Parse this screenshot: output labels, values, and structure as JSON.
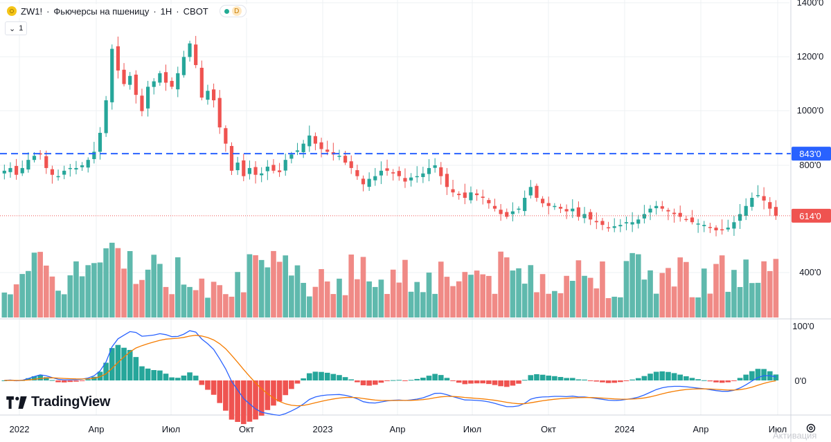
{
  "header": {
    "symbol": "ZW1!",
    "separator": "·",
    "name": "Фьючерсы на пшеницу",
    "interval": "1Н",
    "exchange": "CBOT",
    "status_letter": "D",
    "collapse_count": "1"
  },
  "colors": {
    "up": "#26a69a",
    "down": "#ef5350",
    "up_volume": "#5fb9ad",
    "down_volume": "#f08a86",
    "dashed_line": "#2962ff",
    "macd_line": "#2962ff",
    "signal_line": "#f57c00"
  },
  "branding": {
    "logo_text": "TradingView",
    "logo_icon": "tradingview-logo-icon",
    "settings_icon": "gear-icon"
  },
  "watermark": "Активация",
  "chart_data": {
    "type": "candlestick",
    "title": "ZW1! · Фьючерсы на пшеницу · 1Н · CBOT",
    "interval": "1W",
    "price_axis": {
      "ticks": [
        "1400'0",
        "1200'0",
        "1000'0",
        "800'0",
        "400'0"
      ],
      "range": [
        340,
        1400
      ]
    },
    "time_axis": {
      "ticks": [
        "2022",
        "Апр",
        "Июл",
        "Окт",
        "2023",
        "Апр",
        "Июл",
        "Окт",
        "2024",
        "Апр",
        "Июл"
      ]
    },
    "price_lines": [
      {
        "label": "843'0",
        "value": 843,
        "style": "dashed",
        "color": "#2962ff"
      },
      {
        "label": "614'0",
        "value": 614,
        "style": "dotted",
        "color": "#ef5350"
      }
    ],
    "close_series": [
      780,
      790,
      765,
      790,
      820,
      835,
      840,
      790,
      765,
      760,
      780,
      790,
      790,
      800,
      820,
      850,
      920,
      1040,
      1230,
      1150,
      1100,
      1130,
      1060,
      1000,
      1090,
      1110,
      1140,
      1105,
      1090,
      1140,
      1200,
      1250,
      1170,
      1050,
      1075,
      1040,
      940,
      880,
      780,
      810,
      760,
      790,
      765,
      770,
      795,
      780,
      775,
      820,
      840,
      855,
      880,
      910,
      880,
      860,
      850,
      840,
      835,
      810,
      790,
      760,
      730,
      750,
      760,
      780,
      780,
      770,
      760,
      740,
      755,
      760,
      770,
      790,
      800,
      760,
      720,
      700,
      690,
      680,
      700,
      690,
      680,
      660,
      640,
      620,
      610,
      630,
      640,
      680,
      720,
      680,
      660,
      650,
      650,
      640,
      630,
      640,
      610,
      620,
      600,
      590,
      580,
      570,
      575,
      580,
      590,
      590,
      600,
      620,
      640,
      650,
      640,
      630,
      620,
      610,
      600,
      590,
      585,
      580,
      570,
      560,
      560,
      570,
      590,
      620,
      650,
      680,
      690,
      670,
      640,
      614
    ],
    "ohlc_sample": [
      {
        "period": "2022-01",
        "open": 780,
        "high": 800,
        "low": 750,
        "close": 790
      },
      {
        "period": "2022-03",
        "open": 930,
        "high": 1335,
        "low": 900,
        "close": 1150
      },
      {
        "period": "2022-05",
        "open": 1100,
        "high": 1280,
        "low": 1080,
        "close": 1200
      },
      {
        "period": "2022-07",
        "open": 900,
        "high": 920,
        "low": 750,
        "close": 780
      },
      {
        "period": "2022-10",
        "open": 880,
        "high": 910,
        "low": 850,
        "close": 860
      },
      {
        "period": "2023-01",
        "open": 760,
        "high": 790,
        "low": 730,
        "close": 750
      },
      {
        "period": "2023-06",
        "open": 660,
        "high": 760,
        "low": 640,
        "close": 720
      },
      {
        "period": "2023-10",
        "open": 570,
        "high": 600,
        "low": 550,
        "close": 580
      },
      {
        "period": "2024-01",
        "open": 600,
        "high": 640,
        "low": 580,
        "close": 600
      },
      {
        "period": "2024-05",
        "open": 650,
        "high": 720,
        "low": 630,
        "close": 700
      },
      {
        "period": "2024-06",
        "open": 640,
        "high": 650,
        "low": 610,
        "close": 614
      }
    ],
    "last_price": 614,
    "volume": {
      "type": "bar"
    },
    "macd": {
      "type": "line+histogram",
      "axis_ticks": [
        "100'0",
        "0'0"
      ],
      "lines": [
        "macd",
        "signal"
      ],
      "histogram": true
    }
  }
}
